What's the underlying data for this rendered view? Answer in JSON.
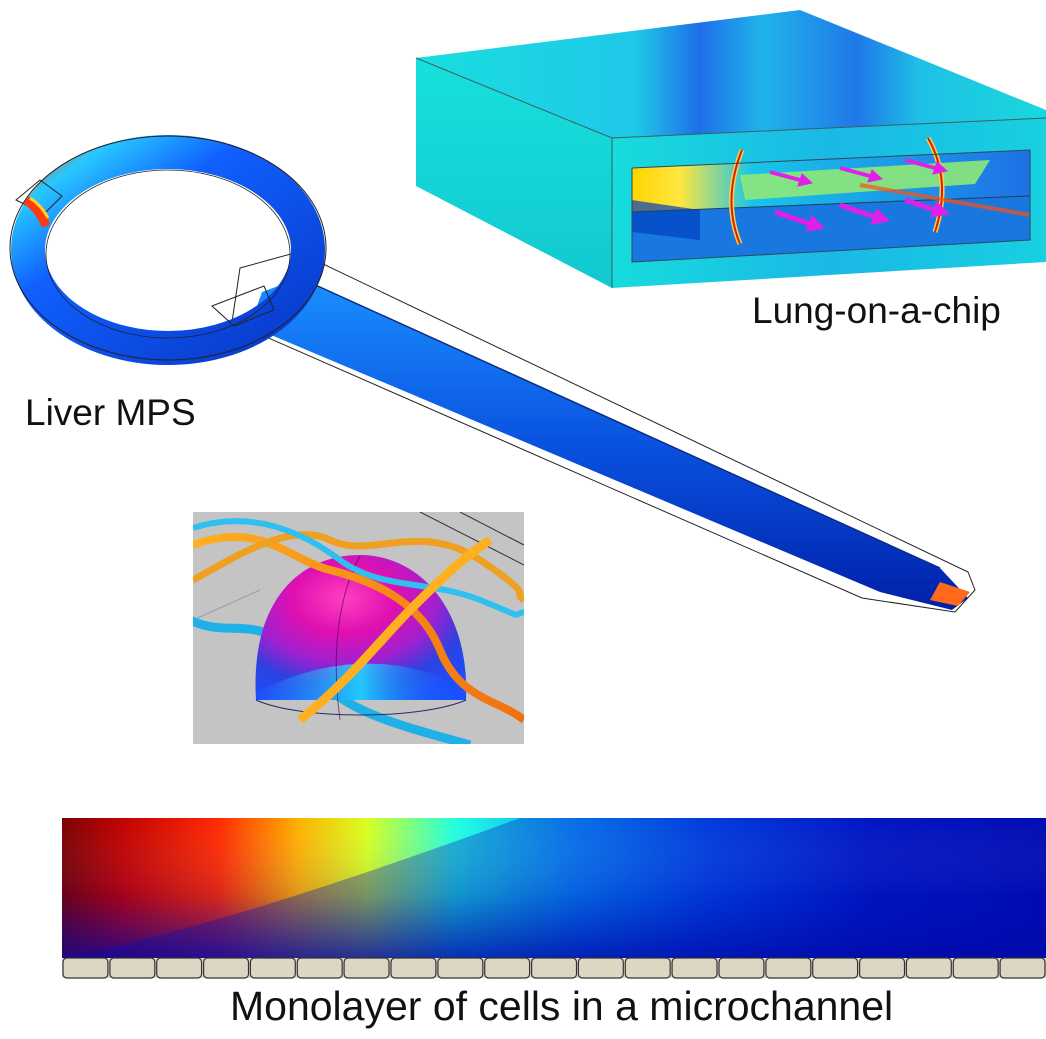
{
  "labels": {
    "liver": "Liver MPS",
    "lung": "Lung-on-a-chip",
    "monolayer": "Monolayer of cells in a microchannel"
  },
  "colors": {
    "background": "#ffffff",
    "cyan_block": "#18dada",
    "dark_red": "#7a0000",
    "blue": "#0033dd",
    "magenta_arrow": "#e020e8",
    "cell_fill": "#ddd6c2",
    "panel_grey": "#c3c3c3"
  },
  "panels": [
    {
      "name": "liver-mps-model"
    },
    {
      "name": "lung-on-a-chip-model"
    },
    {
      "name": "hemisphere-streamlines-model"
    },
    {
      "name": "monolayer-concentration-field"
    }
  ],
  "monolayer": {
    "cell_count": 21
  }
}
